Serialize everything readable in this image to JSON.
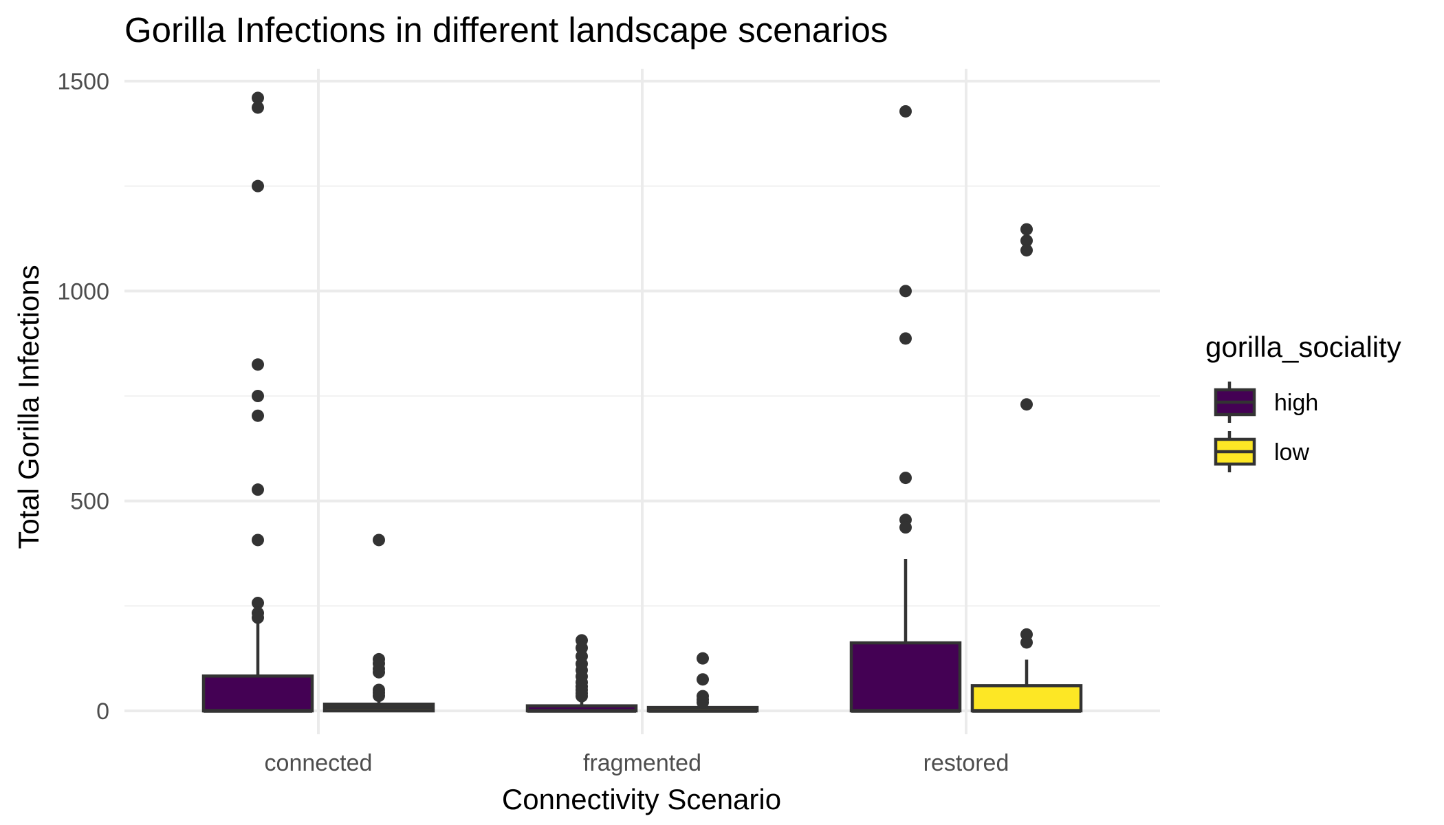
{
  "chart_data": {
    "type": "boxplot",
    "title": "Gorilla Infections in different landscape scenarios",
    "xlabel": "Connectivity Scenario",
    "ylabel": "Total Gorilla Infections",
    "categories": [
      "connected",
      "fragmented",
      "restored"
    ],
    "y_ticks": [
      0,
      500,
      1000,
      1500
    ],
    "ylim": [
      -65,
      1540
    ],
    "grid": true,
    "legend": {
      "title": "gorilla_sociality",
      "placement": "right",
      "entries": [
        {
          "label": "high",
          "color": "#440154"
        },
        {
          "label": "low",
          "color": "#FDE725"
        }
      ]
    },
    "series": [
      {
        "name": "high",
        "color": "#440154",
        "boxes": [
          {
            "category": "connected",
            "min": 0,
            "q1": 0,
            "median": 0,
            "q3": 83,
            "max": 210,
            "outliers": [
              1460,
              1437,
              1250,
              825,
              750,
              703,
              527,
              407,
              257,
              233,
              222
            ]
          },
          {
            "category": "fragmented",
            "min": 0,
            "q1": 0,
            "median": 0,
            "q3": 12,
            "max": 28,
            "outliers": [
              168,
              150,
              130,
              112,
              97,
              82,
              68,
              58,
              50,
              42,
              35
            ]
          },
          {
            "category": "restored",
            "min": 0,
            "q1": 0,
            "median": 0,
            "q3": 162,
            "max": 362,
            "outliers": [
              1428,
              1000,
              887,
              555,
              455,
              437
            ]
          }
        ]
      },
      {
        "name": "low",
        "color": "#FDE725",
        "boxes": [
          {
            "category": "connected",
            "min": 0,
            "q1": 0,
            "median": 8,
            "q3": 16,
            "max": 30,
            "outliers": [
              407,
              123,
              113,
              100,
              92,
              50,
              43,
              36
            ]
          },
          {
            "category": "fragmented",
            "min": 0,
            "q1": 0,
            "median": 0,
            "q3": 8,
            "max": 12,
            "outliers": [
              125,
              75,
              35,
              27,
              20
            ]
          },
          {
            "category": "restored",
            "min": 0,
            "q1": 0,
            "median": 0,
            "q3": 60,
            "max": 122,
            "outliers": [
              1147,
              1120,
              1097,
              730,
              182,
              163
            ]
          }
        ]
      }
    ]
  }
}
